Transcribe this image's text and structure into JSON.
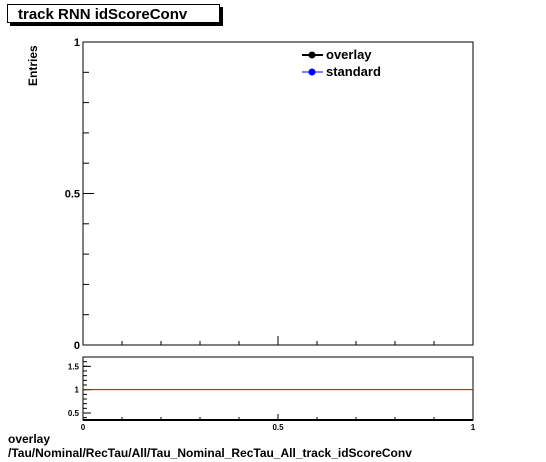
{
  "chart_data": [
    {
      "type": "line",
      "title": "track RNN idScoreConv",
      "ylabel": "Entries",
      "xlim": [
        0,
        1
      ],
      "ylim": [
        0,
        1
      ],
      "x_ticks": [
        "0",
        "0.5",
        "1"
      ],
      "y_ticks": [
        "0",
        "0.5",
        "1"
      ],
      "series": [
        {
          "name": "overlay",
          "color": "#000000",
          "values": []
        },
        {
          "name": "standard",
          "color": "#0000ff",
          "values": []
        }
      ],
      "legend_position": "top-right",
      "grid": false
    },
    {
      "type": "line",
      "xlim": [
        0,
        1
      ],
      "ylim": [
        0.35,
        1.7
      ],
      "x_ticks": [
        "0",
        "0.5",
        "1"
      ],
      "y_ticks": [
        "0.5",
        "1",
        "1.5"
      ],
      "reference_line": {
        "y": 1,
        "color": "#cc0000"
      },
      "grid": false
    }
  ],
  "footer": {
    "line1": "overlay",
    "line2": "/Tau/Nominal/RecTau/All/Tau_Nominal_RecTau_All_track_idScoreConv"
  }
}
